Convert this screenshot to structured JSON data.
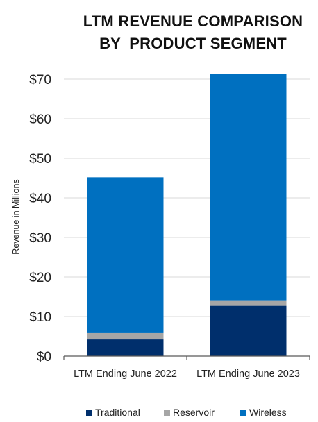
{
  "chart_data": {
    "type": "bar",
    "stacked": true,
    "title": [
      "LTM REVENUE COMPARISON",
      "BY  PRODUCT SEGMENT"
    ],
    "xlabel": "",
    "ylabel": "Revenue in Millions",
    "categories": [
      "LTM Ending June 2022",
      "LTM Ending June 2023"
    ],
    "series": [
      {
        "name": "Traditional",
        "color": "#002f6c",
        "values": [
          4.2,
          12.7
        ]
      },
      {
        "name": "Reservoir",
        "color": "#a6a6a6",
        "values": [
          1.6,
          1.4
        ]
      },
      {
        "name": "Wireless",
        "color": "#0070c0",
        "values": [
          39.4,
          57.2
        ]
      }
    ],
    "ylim": [
      0,
      70
    ],
    "yticks": [
      0,
      10,
      20,
      30,
      40,
      50,
      60,
      70
    ],
    "ytick_labels": [
      "$0",
      "$10",
      "$20",
      "$30",
      "$40",
      "$50",
      "$60",
      "$70"
    ],
    "grid": true,
    "gridline_color": "#d9d9d9",
    "legend_position": "bottom"
  }
}
